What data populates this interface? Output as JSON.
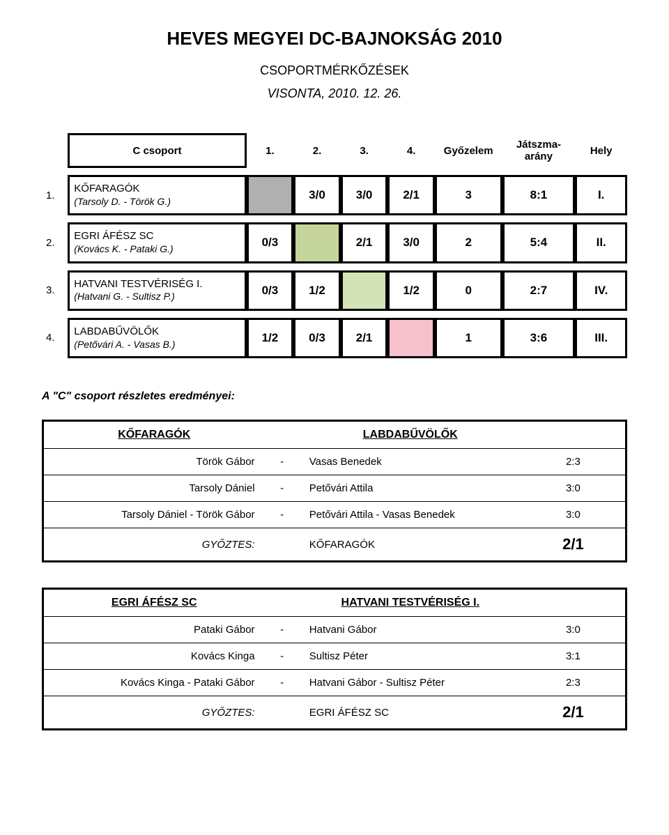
{
  "header": {
    "title": "HEVES MEGYEI DC-BAJNOKSÁG 2010",
    "subtitle": "CSOPORTMÉRKŐZÉSEK",
    "date": "VISONTA, 2010. 12. 26."
  },
  "standings": {
    "group_label": "C csoport",
    "columns": {
      "c1": "1.",
      "c2": "2.",
      "c3": "3.",
      "c4": "4.",
      "wins": "Győzelem",
      "ratio": "Játszma-arány",
      "place": "Hely"
    },
    "rows": [
      {
        "num": "1.",
        "team_name": "KŐFARAGÓK",
        "team_players": "(Tarsoly D. - Török G.)",
        "cells": [
          "",
          "3/0",
          "3/0",
          "2/1"
        ],
        "blank_index": 0,
        "blank_color": "#b0b0b0",
        "wins": "3",
        "ratio": "8:1",
        "place": "I."
      },
      {
        "num": "2.",
        "team_name": "EGRI ÁFÉSZ SC",
        "team_players": "(Kovács K. - Pataki G.)",
        "cells": [
          "0/3",
          "",
          "2/1",
          "3/0"
        ],
        "blank_index": 1,
        "blank_color": "#c6d59b",
        "wins": "2",
        "ratio": "5:4",
        "place": "II."
      },
      {
        "num": "3.",
        "team_name": "HATVANI TESTVÉRISÉG I.",
        "team_players": "(Hatvani G. - Sultisz P.)",
        "cells": [
          "0/3",
          "1/2",
          "",
          "1/2"
        ],
        "blank_index": 2,
        "blank_color": "#d3e3b6",
        "wins": "0",
        "ratio": "2:7",
        "place": "IV."
      },
      {
        "num": "4.",
        "team_name": "LABDABŰVÖLŐK",
        "team_players": "(Petővári A. - Vasas B.)",
        "cells": [
          "1/2",
          "0/3",
          "2/1",
          ""
        ],
        "blank_index": 3,
        "blank_color": "#f6c0cc",
        "wins": "1",
        "ratio": "3:6",
        "place": "III."
      }
    ]
  },
  "results_intro": "A \"C\" csoport részletes eredményei:",
  "matches": [
    {
      "team_a": "KŐFARAGÓK",
      "team_b": "LABDABŰVÖLŐK",
      "rows": [
        {
          "left": "Török Gábor",
          "right": "Vasas Benedek",
          "score": "2:3"
        },
        {
          "left": "Tarsoly Dániel",
          "right": "Petővári Attila",
          "score": "3:0"
        },
        {
          "left": "Tarsoly Dániel - Török Gábor",
          "right": "Petővári Attila - Vasas Benedek",
          "score": "3:0"
        }
      ],
      "winner_label": "GYŐZTES:",
      "winner_team": "KŐFARAGÓK",
      "winner_score": "2/1"
    },
    {
      "team_a": "EGRI ÁFÉSZ SC",
      "team_b": "HATVANI TESTVÉRISÉG I.",
      "rows": [
        {
          "left": "Pataki Gábor",
          "right": "Hatvani Gábor",
          "score": "3:0"
        },
        {
          "left": "Kovács Kinga",
          "right": "Sultisz Péter",
          "score": "3:1"
        },
        {
          "left": "Kovács Kinga - Pataki Gábor",
          "right": "Hatvani Gábor - Sultisz Péter",
          "score": "2:3"
        }
      ],
      "winner_label": "GYŐZTES:",
      "winner_team": "EGRI ÁFÉSZ SC",
      "winner_score": "2/1"
    }
  ]
}
